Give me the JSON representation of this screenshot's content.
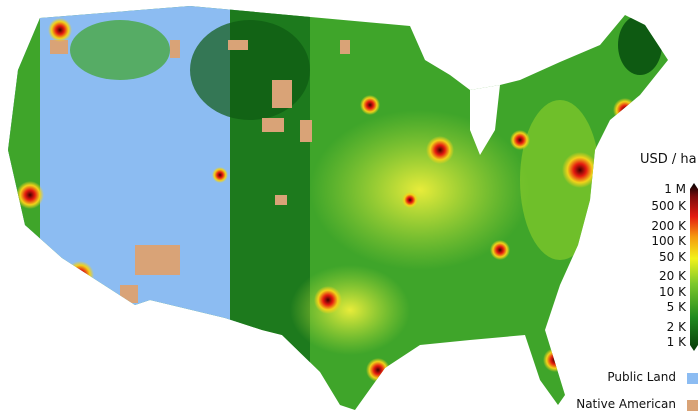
{
  "legend": {
    "unit_label": "USD / ha",
    "scale": "log",
    "ticks": [
      "1 M",
      "500 K",
      "200 K",
      "100 K",
      "50 K",
      "20 K",
      "10 K",
      "5 K",
      "2 K",
      "1 K"
    ],
    "tick_values": [
      1000000,
      500000,
      200000,
      100000,
      50000,
      20000,
      10000,
      5000,
      2000,
      1000
    ],
    "colormap": [
      "#0a3a0a",
      "#1f8a1f",
      "#7cc82a",
      "#f2f21a",
      "#f59a10",
      "#e41b10",
      "#7a0b0b",
      "#000000"
    ],
    "categories": [
      {
        "label": "Public Land",
        "color": "#8cbcf2"
      },
      {
        "label": "Native American",
        "color": "#d9a377"
      }
    ]
  }
}
